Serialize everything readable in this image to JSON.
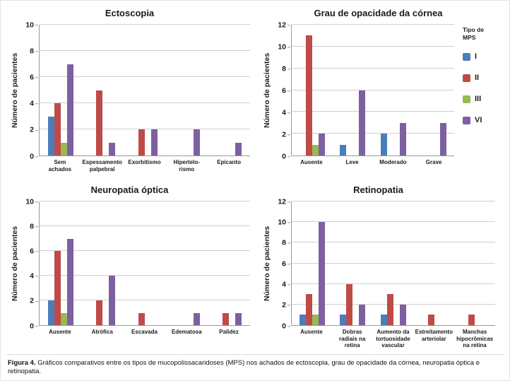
{
  "figure": {
    "caption_label": "Figura 4.",
    "caption_text": " Gráficos comparativos entre os tipos de mucopolissacaridoses (MPS) nos achados de ectoscopia, grau de opacidade da córnea, neuropatia óptica e retinopatia."
  },
  "legend": {
    "title": "Tipo de\nMPS",
    "entries": [
      {
        "label": "I",
        "color": "#4a7ebb"
      },
      {
        "label": "II",
        "color": "#be4b48"
      },
      {
        "label": "III",
        "color": "#98b954"
      },
      {
        "label": "VI",
        "color": "#7d60a0"
      }
    ]
  },
  "chart_data": [
    {
      "type": "bar",
      "title": "Ectoscopia",
      "ylabel": "Número de pacientes",
      "ylim": [
        0,
        10
      ],
      "ytick_step": 2,
      "grid": true,
      "legend_position": "none",
      "categories": [
        "Sem\nachados",
        "Espessamento\npalpebral",
        "Exorbitismo",
        "Hipertelo-\nrismo",
        "Epicanto"
      ],
      "series": [
        {
          "name": "I",
          "values": [
            3,
            0,
            0,
            0,
            0
          ]
        },
        {
          "name": "II",
          "values": [
            4,
            5,
            2,
            0,
            0
          ]
        },
        {
          "name": "III",
          "values": [
            1,
            0,
            0,
            0,
            0
          ]
        },
        {
          "name": "VI",
          "values": [
            7,
            1,
            2,
            2,
            1
          ]
        }
      ]
    },
    {
      "type": "bar",
      "title": "Grau de opacidade da córnea",
      "ylabel": "Número de pacientes",
      "ylim": [
        0,
        12
      ],
      "ytick_step": 2,
      "grid": true,
      "legend_position": "right",
      "categories": [
        "Ausente",
        "Leve",
        "Moderado",
        "Grave"
      ],
      "series": [
        {
          "name": "I",
          "values": [
            0,
            1,
            2,
            0
          ]
        },
        {
          "name": "II",
          "values": [
            11,
            0,
            0,
            0
          ]
        },
        {
          "name": "III",
          "values": [
            1,
            0,
            0,
            0
          ]
        },
        {
          "name": "VI",
          "values": [
            2,
            6,
            3,
            3
          ]
        }
      ]
    },
    {
      "type": "bar",
      "title": "Neuropatia óptica",
      "ylabel": "Número de pacientes",
      "ylim": [
        0,
        10
      ],
      "ytick_step": 2,
      "grid": true,
      "legend_position": "none",
      "categories": [
        "Ausente",
        "Atrófica",
        "Escavada",
        "Edematosa",
        "Palidez"
      ],
      "series": [
        {
          "name": "I",
          "values": [
            2,
            0,
            0,
            0,
            0
          ]
        },
        {
          "name": "II",
          "values": [
            6,
            2,
            1,
            0,
            1
          ]
        },
        {
          "name": "III",
          "values": [
            1,
            0,
            0,
            0,
            0
          ]
        },
        {
          "name": "VI",
          "values": [
            7,
            4,
            0,
            1,
            1
          ]
        }
      ]
    },
    {
      "type": "bar",
      "title": "Retinopatia",
      "ylabel": "Número de pacientes",
      "ylim": [
        0,
        12
      ],
      "ytick_step": 2,
      "grid": true,
      "legend_position": "none",
      "categories": [
        "Ausente",
        "Dobras\nradiais na\nretina",
        "Aumento da\ntortuosidade\nvascular",
        "Estreitamento\narteriolar",
        "Manchas\nhipocrômicas\nna retina"
      ],
      "series": [
        {
          "name": "I",
          "values": [
            1,
            1,
            1,
            0,
            0
          ]
        },
        {
          "name": "II",
          "values": [
            3,
            4,
            3,
            1,
            1
          ]
        },
        {
          "name": "III",
          "values": [
            1,
            0,
            0,
            0,
            0
          ]
        },
        {
          "name": "VI",
          "values": [
            10,
            2,
            2,
            0,
            0
          ]
        }
      ]
    }
  ]
}
